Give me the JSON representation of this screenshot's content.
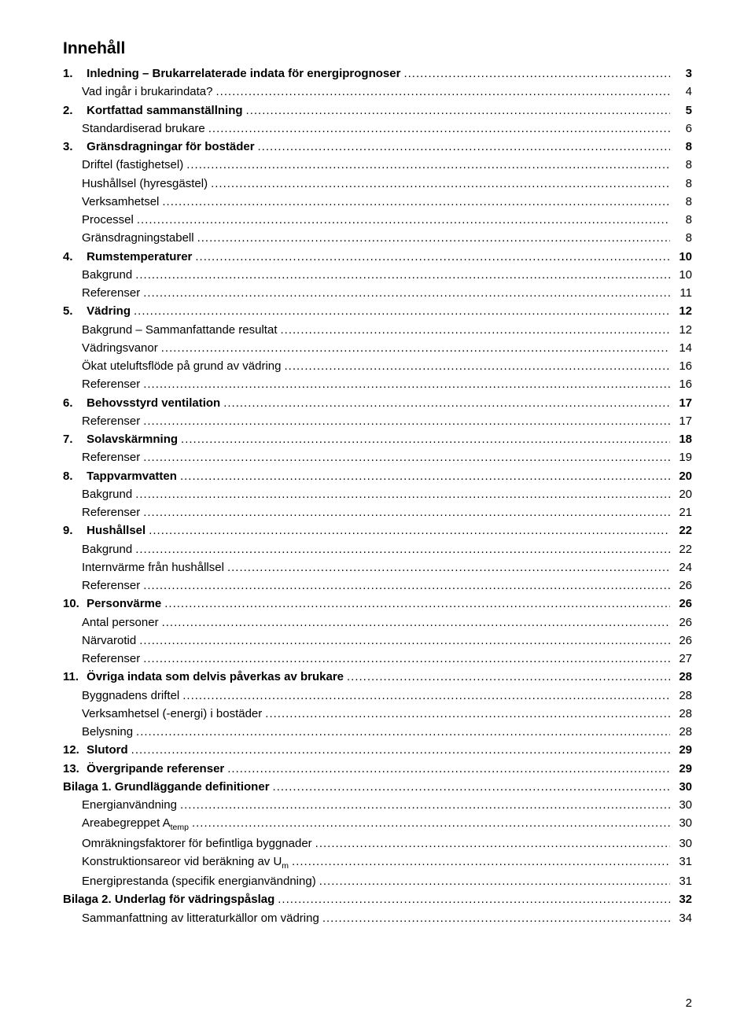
{
  "heading": "Innehåll",
  "page_number": "2",
  "entries": [
    {
      "num": "1.",
      "txt": "Inledning – Brukarrelaterade indata för energiprognoser",
      "pg": "3",
      "bold": true,
      "indent": 0
    },
    {
      "txt": "Vad ingår i brukarindata?",
      "pg": "4",
      "indent": 1
    },
    {
      "num": "2.",
      "txt": "Kortfattad sammanställning",
      "pg": "5",
      "bold": true,
      "indent": 0
    },
    {
      "txt": "Standardiserad brukare",
      "pg": "6",
      "indent": 1
    },
    {
      "num": "3.",
      "txt": "Gränsdragningar för bostäder",
      "pg": "8",
      "bold": true,
      "indent": 0
    },
    {
      "txt": "Driftel (fastighetsel)",
      "pg": "8",
      "indent": 1
    },
    {
      "txt": "Hushållsel (hyresgästel)",
      "pg": "8",
      "indent": 1
    },
    {
      "txt": "Verksamhetsel",
      "pg": "8",
      "indent": 1
    },
    {
      "txt": "Processel",
      "pg": "8",
      "indent": 1
    },
    {
      "txt": "Gränsdragningstabell",
      "pg": "8",
      "indent": 1
    },
    {
      "num": "4.",
      "txt": "Rumstemperaturer",
      "pg": "10",
      "bold": true,
      "indent": 0
    },
    {
      "txt": "Bakgrund",
      "pg": "10",
      "indent": 1
    },
    {
      "txt": "Referenser",
      "pg": "11",
      "indent": 1
    },
    {
      "num": "5.",
      "txt": "Vädring",
      "pg": "12",
      "bold": true,
      "indent": 0
    },
    {
      "txt": "Bakgrund – Sammanfattande resultat",
      "pg": "12",
      "indent": 1
    },
    {
      "txt": "Vädringsvanor",
      "pg": "14",
      "indent": 1
    },
    {
      "txt": "Ökat uteluftsflöde på grund av vädring",
      "pg": "16",
      "indent": 1
    },
    {
      "txt": "Referenser",
      "pg": "16",
      "indent": 1
    },
    {
      "num": "6.",
      "txt": "Behovsstyrd ventilation",
      "pg": "17",
      "bold": true,
      "indent": 0
    },
    {
      "txt": "Referenser",
      "pg": "17",
      "indent": 1
    },
    {
      "num": "7.",
      "txt": "Solavskärmning",
      "pg": "18",
      "bold": true,
      "indent": 0
    },
    {
      "txt": "Referenser",
      "pg": "19",
      "indent": 1
    },
    {
      "num": "8.",
      "txt": "Tappvarmvatten",
      "pg": "20",
      "bold": true,
      "indent": 0
    },
    {
      "txt": "Bakgrund",
      "pg": "20",
      "indent": 1
    },
    {
      "txt": "Referenser",
      "pg": "21",
      "indent": 1
    },
    {
      "num": "9.",
      "txt": "Hushållsel",
      "pg": "22",
      "bold": true,
      "indent": 0
    },
    {
      "txt": "Bakgrund",
      "pg": "22",
      "indent": 1
    },
    {
      "txt": "Internvärme från hushållsel",
      "pg": "24",
      "indent": 1
    },
    {
      "txt": "Referenser",
      "pg": "26",
      "indent": 1
    },
    {
      "num": "10.",
      "txt": "Personvärme",
      "pg": "26",
      "bold": true,
      "indent": 0
    },
    {
      "txt": "Antal personer",
      "pg": "26",
      "indent": 1
    },
    {
      "txt": "Närvarotid",
      "pg": "26",
      "indent": 1
    },
    {
      "txt": "Referenser",
      "pg": "27",
      "indent": 1
    },
    {
      "num": "11.",
      "txt": "Övriga indata som delvis påverkas av brukare",
      "pg": "28",
      "bold": true,
      "indent": 0
    },
    {
      "txt": "Byggnadens driftel",
      "pg": "28",
      "indent": 1
    },
    {
      "txt": "Verksamhetsel (-energi) i bostäder",
      "pg": "28",
      "indent": 1
    },
    {
      "txt": "Belysning",
      "pg": "28",
      "indent": 1
    },
    {
      "num": "12.",
      "txt": "Slutord",
      "pg": "29",
      "bold": true,
      "indent": 0
    },
    {
      "num": "13.",
      "txt": "Övergripande referenser",
      "pg": "29",
      "bold": true,
      "indent": 0
    },
    {
      "txt": "Bilaga 1. Grundläggande definitioner",
      "pg": "30",
      "bold": true,
      "indent": 0
    },
    {
      "txt": "Energianvändning",
      "pg": "30",
      "indent": 1
    },
    {
      "txt_html": "Areabegreppet A<sub class=\"s\">temp</sub>",
      "pg": "30",
      "indent": 1
    },
    {
      "txt": "Omräkningsfaktorer för befintliga byggnader",
      "pg": "30",
      "indent": 1
    },
    {
      "txt_html": "Konstruktionsareor vid beräkning av U<sub class=\"s\">m</sub>",
      "pg": "31",
      "indent": 1
    },
    {
      "txt": "Energiprestanda (specifik energianvändning)",
      "pg": "31",
      "indent": 1
    },
    {
      "txt": "Bilaga 2. Underlag för vädringspåslag",
      "pg": "32",
      "bold": true,
      "indent": 0
    },
    {
      "txt": "Sammanfattning av litteraturkällor om vädring",
      "pg": "34",
      "indent": 1
    }
  ]
}
